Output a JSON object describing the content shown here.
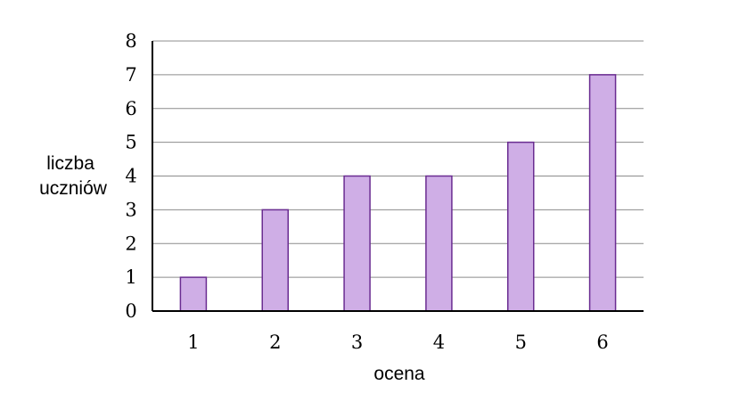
{
  "chart_data": {
    "type": "bar",
    "categories": [
      "1",
      "2",
      "3",
      "4",
      "5",
      "6"
    ],
    "values": [
      1,
      3,
      4,
      4,
      5,
      7
    ],
    "title": "",
    "xlabel": "ocena",
    "ylabel_lines": [
      "liczba",
      "uczniów"
    ],
    "ylim": [
      0,
      8
    ],
    "yticks": [
      "0",
      "1",
      "2",
      "3",
      "4",
      "5",
      "6",
      "7",
      "8"
    ],
    "grid": true,
    "legend": "none",
    "colors": {
      "bar_fill": "#cfaee6",
      "bar_stroke": "#6a2c91",
      "grid": "#8c8c8c",
      "axis": "#000000"
    }
  }
}
